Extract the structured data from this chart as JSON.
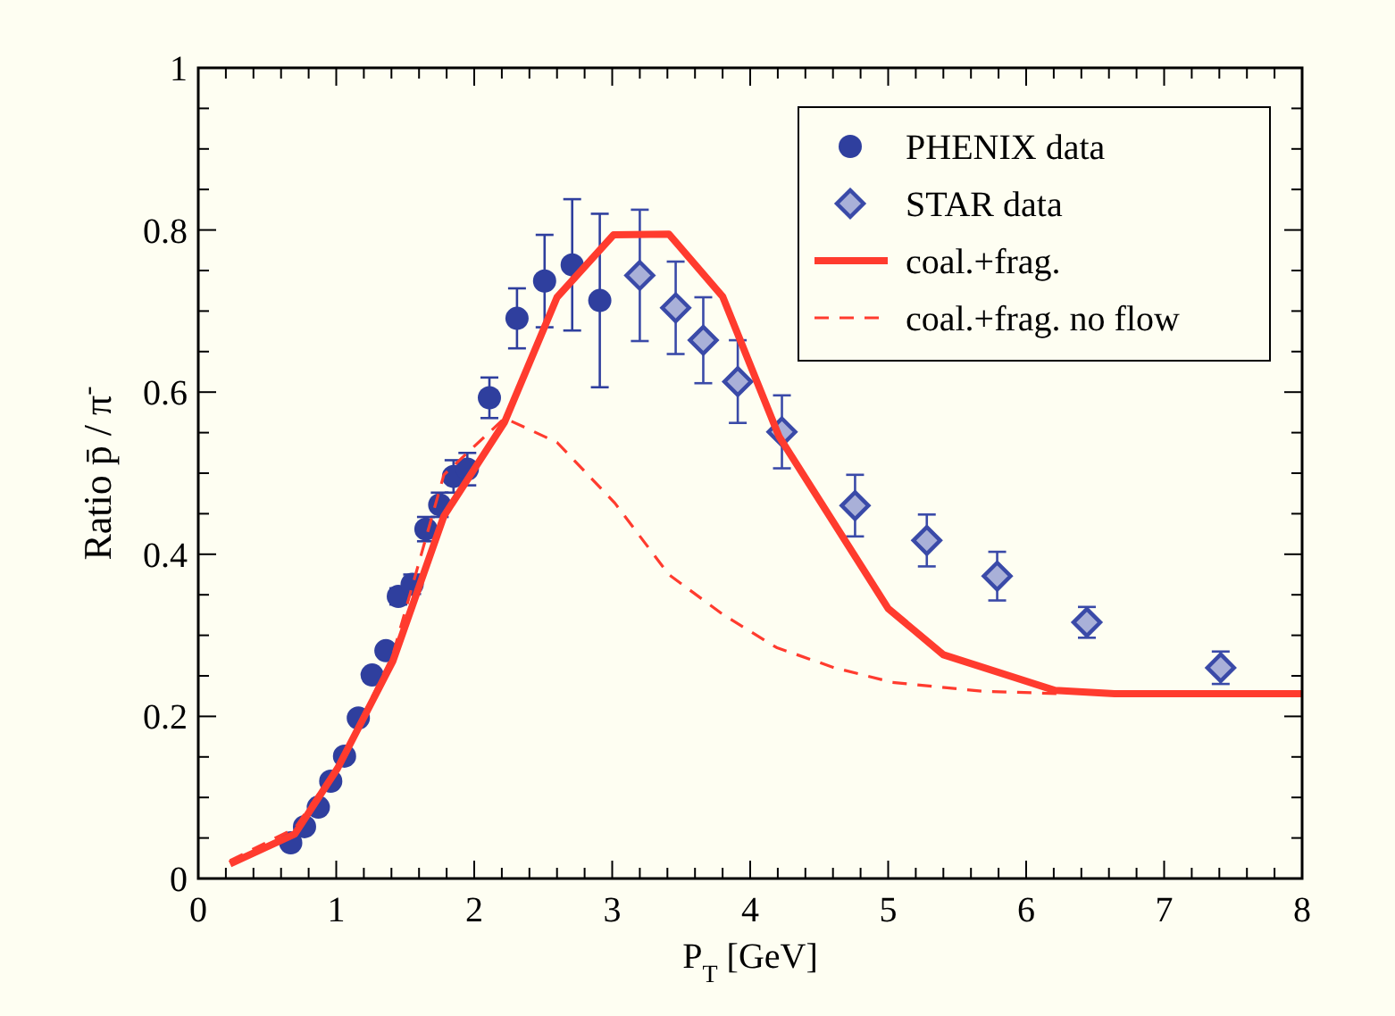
{
  "chart_data": {
    "type": "scatter",
    "xlabel": "P$_{T}$ [GeV]",
    "ylabel": "Ratio  p̄ / π$^{-}$",
    "xlim": [
      0,
      8
    ],
    "ylim": [
      0,
      1
    ],
    "xticks": [
      0,
      {
        "value": 0.2,
        "label": null
      },
      {
        "value": 0.4,
        "label": null
      },
      {
        "value": 0.6,
        "label": null
      },
      {
        "value": 0.8,
        "label": null
      },
      1,
      {
        "value": 1.2,
        "label": null
      },
      {
        "value": 1.4,
        "label": null
      },
      {
        "value": 1.6,
        "label": null
      },
      {
        "value": 1.8,
        "label": null
      },
      2,
      {
        "value": 2.2,
        "label": null
      },
      {
        "value": 2.4,
        "label": null
      },
      {
        "value": 2.6,
        "label": null
      },
      {
        "value": 2.8,
        "label": null
      },
      3,
      {
        "value": 3.2,
        "label": null
      },
      {
        "value": 3.4,
        "label": null
      },
      {
        "value": 3.6,
        "label": null
      },
      {
        "value": 3.8,
        "label": null
      },
      4,
      {
        "value": 4.2,
        "label": null
      },
      {
        "value": 4.4,
        "label": null
      },
      {
        "value": 4.6,
        "label": null
      },
      {
        "value": 4.8,
        "label": null
      },
      5,
      {
        "value": 5.2,
        "label": null
      },
      {
        "value": 5.4,
        "label": null
      },
      {
        "value": 5.6,
        "label": null
      },
      {
        "value": 5.8,
        "label": null
      },
      6,
      {
        "value": 6.2,
        "label": null
      },
      {
        "value": 6.4,
        "label": null
      },
      {
        "value": 6.6,
        "label": null
      },
      {
        "value": 6.8,
        "label": null
      },
      7,
      {
        "value": 7.2,
        "label": null
      },
      {
        "value": 7.4,
        "label": null
      },
      {
        "value": 7.6,
        "label": null
      },
      {
        "value": 7.8,
        "label": null
      },
      8
    ],
    "yticks": [
      0,
      {
        "value": 0.05,
        "label": null
      },
      {
        "value": 0.1,
        "label": null
      },
      {
        "value": 0.15,
        "label": null
      },
      0.2,
      {
        "value": 0.25,
        "label": null
      },
      {
        "value": 0.3,
        "label": null
      },
      {
        "value": 0.35,
        "label": null
      },
      0.4,
      {
        "value": 0.45,
        "label": null
      },
      {
        "value": 0.5,
        "label": null
      },
      {
        "value": 0.55,
        "label": null
      },
      0.6,
      {
        "value": 0.65,
        "label": null
      },
      {
        "value": 0.7,
        "label": null
      },
      {
        "value": 0.75,
        "label": null
      },
      0.8,
      {
        "value": 0.85,
        "label": null
      },
      {
        "value": 0.9,
        "label": null
      },
      {
        "value": 0.95,
        "label": null
      },
      1
    ],
    "legend": "top right",
    "series": [
      {
        "name": "PHENIX data",
        "marker": "circle",
        "color": "#2f3f9e",
        "x": [
          0.67,
          0.77,
          0.87,
          0.96,
          1.06,
          1.16,
          1.26,
          1.36,
          1.45,
          1.55,
          1.65,
          1.75,
          1.85,
          1.95,
          2.11,
          2.31,
          2.51,
          2.71,
          2.91
        ],
        "values": [
          0.044,
          0.064,
          0.088,
          0.12,
          0.151,
          0.198,
          0.251,
          0.281,
          0.348,
          0.363,
          0.431,
          0.461,
          0.496,
          0.505,
          0.593,
          0.691,
          0.737,
          0.757,
          0.713
        ],
        "errors": [
          null,
          null,
          null,
          null,
          null,
          null,
          null,
          null,
          0.01,
          0.012,
          0.015,
          0.015,
          0.02,
          0.02,
          0.025,
          0.037,
          0.057,
          0.081,
          0.107
        ]
      },
      {
        "name": "STAR data",
        "marker": "diamond",
        "color": "#3a4aa8",
        "x": [
          3.2,
          3.46,
          3.66,
          3.91,
          4.23,
          4.76,
          5.28,
          5.79,
          6.44,
          7.41
        ],
        "values": [
          0.744,
          0.704,
          0.664,
          0.613,
          0.551,
          0.46,
          0.417,
          0.373,
          0.316,
          0.26
        ],
        "errors": [
          0.081,
          0.057,
          0.053,
          0.051,
          0.045,
          0.038,
          0.032,
          0.03,
          0.019,
          0.02
        ]
      },
      {
        "name": "coal.+frag.",
        "type": "line",
        "marker": "none",
        "line_style": "solid",
        "color": "#ff3b2e",
        "x": [
          0.23,
          0.7,
          1.01,
          1.41,
          1.78,
          2.22,
          2.6,
          3.01,
          3.41,
          3.8,
          4.21,
          5.0,
          5.4,
          6.21,
          6.64,
          8
        ],
        "values": [
          0.018,
          0.055,
          0.136,
          0.268,
          0.447,
          0.563,
          0.717,
          0.794,
          0.795,
          0.718,
          0.545,
          0.333,
          0.276,
          0.232,
          0.228,
          0.228
        ]
      },
      {
        "name": "coal.+frag. no flow",
        "type": "line",
        "marker": "none",
        "line_style": "dashed",
        "color": "#ff3b2e",
        "x": [
          0.23,
          0.7,
          1.02,
          1.41,
          1.78,
          2.22,
          2.6,
          3.02,
          3.41,
          3.8,
          4.19,
          4.61,
          5.03,
          5.68,
          6.26
        ],
        "values": [
          0.022,
          0.062,
          0.141,
          0.276,
          0.498,
          0.568,
          0.538,
          0.463,
          0.375,
          0.326,
          0.285,
          0.26,
          0.242,
          0.231,
          0.228
        ]
      }
    ]
  }
}
